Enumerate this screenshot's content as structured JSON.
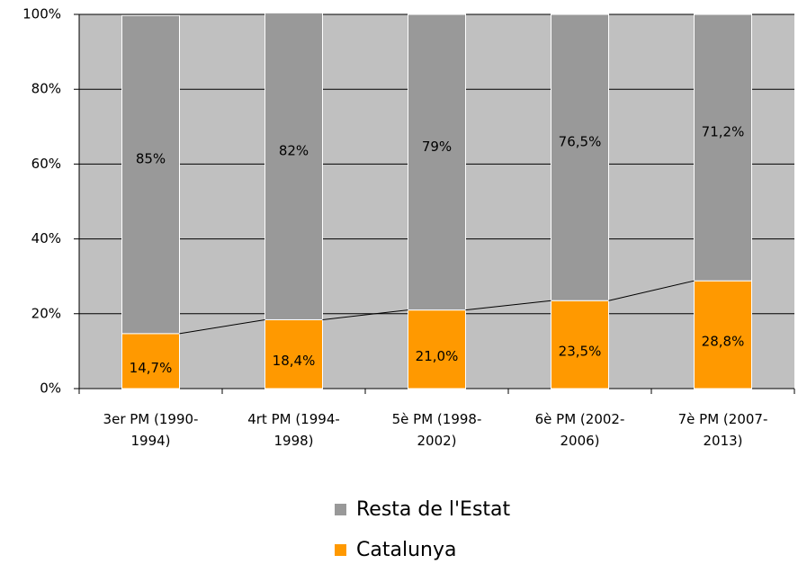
{
  "chart_data": {
    "type": "stacked_bar",
    "categories": [
      "3er PM (1990-1994)",
      "4rt PM (1994-1998)",
      "5è PM (1998-2002)",
      "6è PM (2002-2006)",
      "7è PM (2007-2013)"
    ],
    "series": [
      {
        "name": "Catalunya",
        "color": "#ff9900",
        "values": [
          14.7,
          18.4,
          21.0,
          23.5,
          28.8
        ],
        "value_labels": [
          "14,7%",
          "18,4%",
          "21,0%",
          "23,5%",
          "28,8%"
        ]
      },
      {
        "name": "Resta de l'Estat",
        "color": "#999999",
        "values": [
          85,
          82,
          79,
          76.5,
          71.2
        ],
        "value_labels": [
          "85%",
          "82%",
          "79%",
          "76,5%",
          "71,2%"
        ]
      }
    ],
    "ylim": [
      0,
      100
    ],
    "yticks": [
      {
        "value": 0,
        "label": "0%"
      },
      {
        "value": 20,
        "label": "20%"
      },
      {
        "value": 40,
        "label": "40%"
      },
      {
        "value": 60,
        "label": "60%"
      },
      {
        "value": 80,
        "label": "80%"
      },
      {
        "value": 100,
        "label": "100%"
      }
    ],
    "grid": true,
    "plot_background": "#c0c0c0",
    "legend": "bottom"
  }
}
